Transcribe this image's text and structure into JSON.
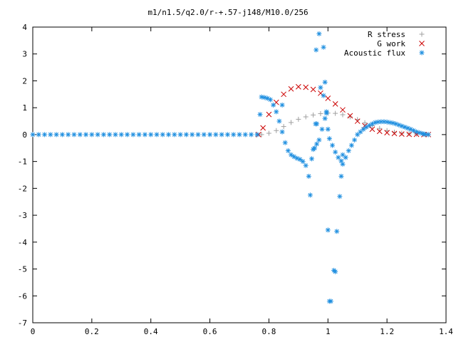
{
  "chart_data": {
    "type": "scatter",
    "title": "m1/n1.5/q2.0/r-+.57-j148/M10.0/256",
    "xlabel": "",
    "ylabel": "",
    "xlim": [
      0,
      1.4
    ],
    "ylim": [
      -7,
      4
    ],
    "grid": false,
    "legend_position": "top-right",
    "xticks": [
      "0",
      "0.2",
      "0.4",
      "0.6",
      "0.8",
      "1",
      "1.2",
      "1.4"
    ],
    "yticks": [
      "4",
      "3",
      "2",
      "1",
      "0",
      "-1",
      "-2",
      "-3",
      "-4",
      "-5",
      "-6",
      "-7"
    ],
    "series": [
      {
        "name": "R stress",
        "marker": "+",
        "color": "#a0a0a0",
        "x": [
          0.775,
          0.8,
          0.825,
          0.85,
          0.875,
          0.9,
          0.925,
          0.95,
          0.975,
          1.0,
          1.025,
          1.05,
          1.075,
          1.1,
          1.125,
          1.15,
          1.175,
          1.2,
          1.225,
          1.25,
          1.275,
          1.3,
          1.325,
          1.34
        ],
        "y": [
          0.0,
          0.05,
          0.15,
          0.3,
          0.45,
          0.57,
          0.66,
          0.73,
          0.78,
          0.8,
          0.79,
          0.74,
          0.66,
          0.56,
          0.44,
          0.33,
          0.23,
          0.15,
          0.09,
          0.05,
          0.03,
          0.02,
          0.01,
          0.0
        ]
      },
      {
        "name": "G work",
        "marker": "x",
        "color": "#cc0000",
        "x": [
          0.765,
          0.78,
          0.8,
          0.825,
          0.85,
          0.875,
          0.9,
          0.925,
          0.95,
          0.975,
          1.0,
          1.025,
          1.05,
          1.075,
          1.1,
          1.125,
          1.15,
          1.175,
          1.2,
          1.225,
          1.25,
          1.275,
          1.3,
          1.325,
          1.34
        ],
        "y": [
          0.0,
          0.25,
          0.75,
          1.2,
          1.5,
          1.7,
          1.78,
          1.76,
          1.68,
          1.54,
          1.35,
          1.14,
          0.92,
          0.7,
          0.5,
          0.33,
          0.2,
          0.12,
          0.07,
          0.04,
          0.02,
          0.01,
          0.01,
          0.0,
          0.0
        ]
      },
      {
        "name": "Acoustic flux",
        "marker": "*",
        "color": "#1f8fe0",
        "x": [
          0.0,
          0.02,
          0.04,
          0.06,
          0.08,
          0.1,
          0.12,
          0.14,
          0.16,
          0.18,
          0.2,
          0.22,
          0.24,
          0.26,
          0.28,
          0.3,
          0.32,
          0.34,
          0.36,
          0.38,
          0.4,
          0.42,
          0.44,
          0.46,
          0.48,
          0.5,
          0.52,
          0.54,
          0.56,
          0.58,
          0.6,
          0.62,
          0.64,
          0.66,
          0.68,
          0.7,
          0.72,
          0.74,
          0.76,
          0.77,
          0.775,
          0.785,
          0.795,
          0.805,
          0.815,
          0.825,
          0.835,
          0.845,
          0.855,
          0.865,
          0.875,
          0.885,
          0.895,
          0.905,
          0.915,
          0.925,
          0.935,
          0.945,
          0.955,
          0.962,
          0.975,
          0.985,
          0.995,
          1.0,
          1.005,
          1.015,
          1.025,
          1.035,
          1.045,
          1.05,
          1.06,
          1.07,
          1.08,
          1.09,
          1.1,
          1.11,
          1.12,
          1.13,
          1.14,
          1.15,
          1.16,
          1.17,
          1.18,
          1.19,
          1.2,
          1.21,
          1.22,
          1.23,
          1.24,
          1.25,
          1.26,
          1.27,
          1.28,
          1.29,
          1.3,
          1.31,
          1.32,
          1.325,
          1.33,
          1.34,
          0.845,
          0.96,
          0.97,
          0.985,
          0.99,
          1.0,
          1.005,
          1.01,
          1.02,
          1.025,
          1.03,
          1.04,
          1.045,
          1.05,
          0.94,
          0.95,
          0.958,
          0.962,
          0.97,
          0.98,
          0.99,
          0.995
        ],
        "y": [
          0,
          0,
          0,
          0,
          0,
          0,
          0,
          0,
          0,
          0,
          0,
          0,
          0,
          0,
          0,
          0,
          0,
          0,
          0,
          0,
          0,
          0,
          0,
          0,
          0,
          0,
          0,
          0,
          0,
          0,
          0,
          0,
          0,
          0,
          0,
          0,
          0,
          0,
          0,
          0.75,
          1.4,
          1.38,
          1.35,
          1.3,
          1.1,
          0.85,
          0.5,
          0.1,
          -0.3,
          -0.6,
          -0.75,
          -0.82,
          -0.88,
          -0.92,
          -1.0,
          -1.15,
          -1.55,
          -0.9,
          -0.5,
          0.4,
          1.75,
          1.45,
          0.85,
          0.2,
          -0.15,
          -0.4,
          -0.65,
          -0.85,
          -0.98,
          -1.1,
          -0.85,
          -0.6,
          -0.4,
          -0.2,
          0.0,
          0.1,
          0.2,
          0.28,
          0.34,
          0.4,
          0.45,
          0.47,
          0.48,
          0.48,
          0.47,
          0.45,
          0.43,
          0.4,
          0.36,
          0.32,
          0.28,
          0.24,
          0.2,
          0.15,
          0.1,
          0.07,
          0.04,
          0.02,
          0.01,
          0.0,
          1.1,
          3.15,
          3.75,
          3.25,
          1.95,
          -3.55,
          -6.2,
          -6.2,
          -5.05,
          -5.1,
          -3.6,
          -2.3,
          -1.55,
          -0.75,
          -2.25,
          -0.55,
          0.4,
          -0.35,
          -0.2,
          0.2,
          0.6,
          0.8
        ]
      }
    ]
  }
}
